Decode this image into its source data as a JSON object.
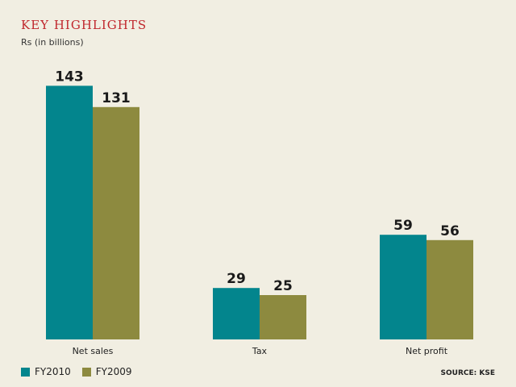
{
  "title": "KEY HIGHLIGHTS",
  "subtitle": "Rs (in billions)",
  "source": "SOURCE: KSE",
  "colors": {
    "FY2010": "#03858d",
    "FY2009": "#8d8a3f",
    "background": "#f1eee2"
  },
  "chart_data": {
    "type": "bar",
    "categories": [
      "Net sales",
      "Tax",
      "Net profit"
    ],
    "series": [
      {
        "name": "FY2010",
        "values": [
          143,
          29,
          59
        ]
      },
      {
        "name": "FY2009",
        "values": [
          131,
          25,
          56
        ]
      }
    ],
    "ylim": [
      0,
      150
    ],
    "grid": false,
    "legend": "bottom-left"
  }
}
